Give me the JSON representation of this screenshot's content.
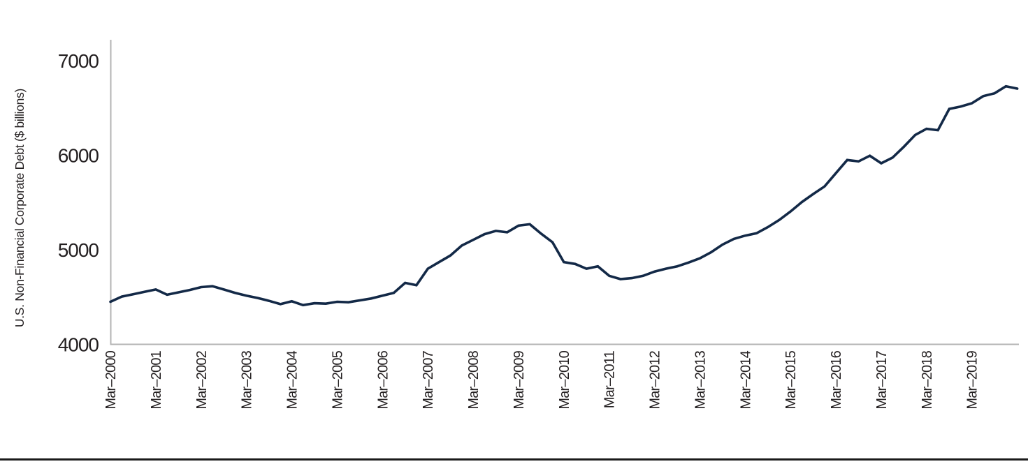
{
  "page": {
    "background": "#ffffff",
    "bottom_rule_color": "#1a1a1a"
  },
  "chart_data": {
    "type": "line",
    "title": "",
    "xlabel": "",
    "ylabel": "U.S. Non-Financial Corporate Debt ($ billions)",
    "ylim": [
      4000,
      7000
    ],
    "y_ticks": [
      4000,
      5000,
      6000,
      7000
    ],
    "x_tick_labels": [
      "Mar–2000",
      "Mar–2001",
      "Mar–2002",
      "Mar–2003",
      "Mar–2004",
      "Mar–2005",
      "Mar–2006",
      "Mar–2007",
      "Mar–2008",
      "Mar–2009",
      "Mar–2010",
      "Mar–2011",
      "Mar–2012",
      "Mar–2013",
      "Mar–2014",
      "Mar–2015",
      "Mar–2016",
      "Mar–2017",
      "Mar–2018",
      "Mar–2019"
    ],
    "grid": false,
    "legend_position": "none",
    "line_color": "#132947",
    "axis_color": "#b3b3b3",
    "text_color": "#231f20",
    "series": [
      {
        "name": "U.S. Non-Financial Corporate Debt ($ billions)",
        "frequency": "quarterly",
        "x_start": "Mar-2000",
        "x_end": "Mar-2020",
        "values": [
          4450,
          4505,
          4530,
          4555,
          4580,
          4525,
          4550,
          4575,
          4605,
          4615,
          4580,
          4545,
          4515,
          4490,
          4460,
          4425,
          4455,
          4415,
          4435,
          4430,
          4450,
          4445,
          4465,
          4485,
          4515,
          4545,
          4650,
          4625,
          4800,
          4870,
          4940,
          5045,
          5105,
          5165,
          5200,
          5185,
          5255,
          5270,
          5170,
          5080,
          4870,
          4850,
          4800,
          4825,
          4725,
          4690,
          4700,
          4725,
          4770,
          4800,
          4825,
          4865,
          4910,
          4975,
          5055,
          5115,
          5150,
          5175,
          5240,
          5315,
          5405,
          5505,
          5590,
          5670,
          5810,
          5950,
          5935,
          5995,
          5915,
          5975,
          6090,
          6215,
          6280,
          6265,
          6490,
          6515,
          6550,
          6625,
          6655,
          6730,
          6705
        ]
      }
    ]
  }
}
